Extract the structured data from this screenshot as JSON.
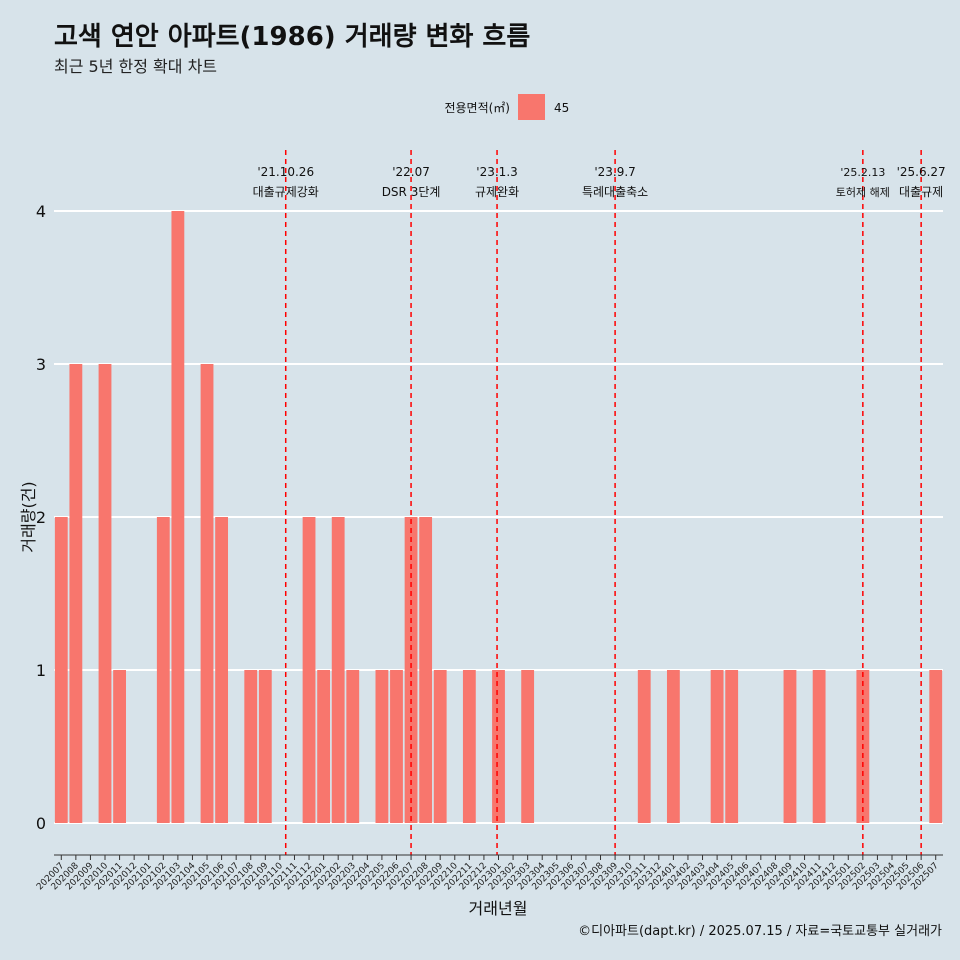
{
  "header": {
    "title": "고색 연안 아파트(1986) 거래량 변화 흐름",
    "subtitle": "최근 5년 한정 확대 차트"
  },
  "legend": {
    "title": "전용면적(㎡)",
    "item": "45",
    "color": "#f8766d"
  },
  "caption": "©디아파트(dapt.kr) / 2025.07.15 / 자료=국토교통부 실거래가",
  "colors": {
    "background": "#d7e3ea",
    "bar": "#f8766d",
    "event_line": "#ff0000",
    "grid": "#ffffff"
  },
  "chart_data": {
    "type": "bar",
    "xlabel": "거래년월",
    "ylabel": "거래량(건)",
    "ylim": [
      0,
      4
    ],
    "yticks": [
      "0",
      "1",
      "2",
      "3",
      "4"
    ],
    "grid": true,
    "legend_position": "top",
    "series": [
      {
        "name": "45"
      }
    ],
    "categories": [
      "202007",
      "202008",
      "202009",
      "202010",
      "202011",
      "202012",
      "202101",
      "202102",
      "202103",
      "202104",
      "202105",
      "202106",
      "202107",
      "202108",
      "202109",
      "202110",
      "202111",
      "202112",
      "202201",
      "202202",
      "202203",
      "202204",
      "202205",
      "202206",
      "202207",
      "202208",
      "202209",
      "202210",
      "202211",
      "202212",
      "202301",
      "202302",
      "202303",
      "202304",
      "202305",
      "202306",
      "202307",
      "202308",
      "202309",
      "202310",
      "202311",
      "202312",
      "202401",
      "202402",
      "202403",
      "202404",
      "202405",
      "202406",
      "202407",
      "202408",
      "202409",
      "202410",
      "202411",
      "202412",
      "202501",
      "202502",
      "202503",
      "202504",
      "202505",
      "202506",
      "202507"
    ],
    "values": [
      2,
      3,
      0,
      3,
      1,
      0,
      0,
      2,
      4,
      0,
      3,
      2,
      0,
      1,
      1,
      0,
      0,
      2,
      1,
      2,
      1,
      0,
      1,
      1,
      2,
      2,
      1,
      0,
      1,
      0,
      1,
      0,
      1,
      0,
      0,
      0,
      0,
      0,
      0,
      0,
      1,
      0,
      1,
      0,
      0,
      1,
      1,
      0,
      0,
      0,
      1,
      0,
      1,
      0,
      0,
      1,
      0,
      0,
      0,
      0,
      1
    ],
    "events": [
      {
        "date": "'21.10.26",
        "label": "대출규제강화",
        "x": "202110",
        "offset": 0.4,
        "small": false
      },
      {
        "date": "'22.07",
        "label": "DSR 3단계",
        "x": "202207",
        "offset": 0.0,
        "small": false
      },
      {
        "date": "'23.1.3",
        "label": "규제완화",
        "x": "202301",
        "offset": -0.1,
        "small": false
      },
      {
        "date": "'23.9.7",
        "label": "특례대출축소",
        "x": "202309",
        "offset": 0.0,
        "small": false
      },
      {
        "date": "'25.2.13",
        "label": "토허제 해제",
        "x": "202502",
        "offset": 0.0,
        "small": true
      },
      {
        "date": "'25.6.27",
        "label": "대출규제",
        "x": "202506",
        "offset": 0.0,
        "small": false
      }
    ]
  }
}
